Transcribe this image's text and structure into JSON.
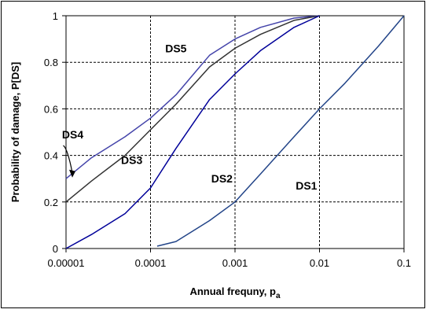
{
  "chart_data": {
    "type": "line",
    "xlabel": "Annual frequny, p",
    "xlabel_subscript": "a",
    "ylabel": "Probability of damage, P[DS]",
    "x_scale": "log",
    "xlim": [
      1e-05,
      0.1
    ],
    "ylim": [
      0,
      1
    ],
    "x_ticks": [
      "0.00001",
      "0.0001",
      "0.001",
      "0.01",
      "0.1"
    ],
    "y_ticks": [
      "0",
      "0.2",
      "0.4",
      "0.6",
      "0.8",
      "1"
    ],
    "grid": "dashed major gridlines",
    "frame": "plot-area border and outer chart border",
    "series": [
      {
        "name": "DS5",
        "color": "#4444aa",
        "points": [
          [
            1e-05,
            0.3
          ],
          [
            2e-05,
            0.39
          ],
          [
            5e-05,
            0.48
          ],
          [
            0.0001,
            0.56
          ],
          [
            0.0002,
            0.66
          ],
          [
            0.0005,
            0.83
          ],
          [
            0.001,
            0.9
          ],
          [
            0.002,
            0.95
          ],
          [
            0.005,
            0.99
          ],
          [
            0.01,
            1.0
          ]
        ]
      },
      {
        "name": "DS4",
        "color": "#333333",
        "points": [
          [
            1e-05,
            0.2
          ],
          [
            2e-05,
            0.29
          ],
          [
            5e-05,
            0.4
          ],
          [
            0.0001,
            0.51
          ],
          [
            0.0002,
            0.62
          ],
          [
            0.0005,
            0.78
          ],
          [
            0.001,
            0.86
          ],
          [
            0.002,
            0.92
          ],
          [
            0.005,
            0.98
          ],
          [
            0.01,
            1.0
          ]
        ]
      },
      {
        "name": "DS3",
        "color": "#000099",
        "points": [
          [
            1e-05,
            0.0
          ],
          [
            2e-05,
            0.06
          ],
          [
            5e-05,
            0.15
          ],
          [
            0.0001,
            0.26
          ],
          [
            0.0002,
            0.43
          ],
          [
            0.0005,
            0.64
          ],
          [
            0.001,
            0.75
          ],
          [
            0.002,
            0.85
          ],
          [
            0.005,
            0.95
          ],
          [
            0.01,
            1.0
          ]
        ]
      },
      {
        "name": "DS2",
        "color": "#224488",
        "points": [
          [
            0.00012,
            0.01
          ],
          [
            0.0002,
            0.03
          ],
          [
            0.0005,
            0.12
          ],
          [
            0.001,
            0.2
          ],
          [
            0.002,
            0.32
          ],
          [
            0.005,
            0.48
          ],
          [
            0.01,
            0.6
          ],
          [
            0.02,
            0.71
          ],
          [
            0.05,
            0.87
          ],
          [
            0.1,
            1.0
          ]
        ]
      }
    ],
    "annotations": [
      {
        "text": "DS5",
        "x": 0.0002,
        "y": 0.86
      },
      {
        "text": "DS4",
        "x": 1.2e-05,
        "y": 0.49
      },
      {
        "text": "DS3",
        "x": 6e-05,
        "y": 0.38
      },
      {
        "text": "DS2",
        "x": 0.0007,
        "y": 0.3
      },
      {
        "text": "DS1",
        "x": 0.007,
        "y": 0.27
      }
    ]
  }
}
